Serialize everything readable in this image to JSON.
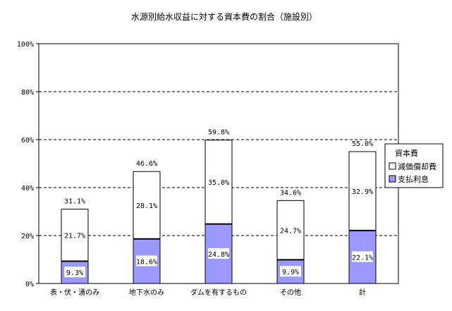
{
  "chart_data": {
    "type": "bar",
    "stacked": true,
    "title": "水源別給水収益に対する資本費の割合（施設別）",
    "categories": [
      "表・伏・湧のみ",
      "地下水のみ",
      "ダムを有するもの",
      "その他",
      "計"
    ],
    "series": [
      {
        "name": "支払利息",
        "values": [
          9.3,
          18.6,
          24.8,
          9.9,
          22.1
        ],
        "labels": [
          "9.3%",
          "18.6%",
          "24.8%",
          "9.9%",
          "22.1%"
        ],
        "color": "#9999ff"
      },
      {
        "name": "減価償却費",
        "values": [
          21.7,
          28.1,
          35.0,
          24.7,
          32.9
        ],
        "labels": [
          "21.7%",
          "28.1%",
          "35.0%",
          "24.7%",
          "32.9%"
        ],
        "color": "#ffffff"
      }
    ],
    "totals": [
      "31.1%",
      "46.6%",
      "59.8%",
      "34.6%",
      "55.0%"
    ],
    "ylim": [
      0,
      100
    ],
    "yticks": [
      "0%",
      "20%",
      "40%",
      "60%",
      "80%",
      "100%"
    ],
    "grid": "dashed",
    "legend": {
      "title": "資本費",
      "placement": "right"
    }
  }
}
